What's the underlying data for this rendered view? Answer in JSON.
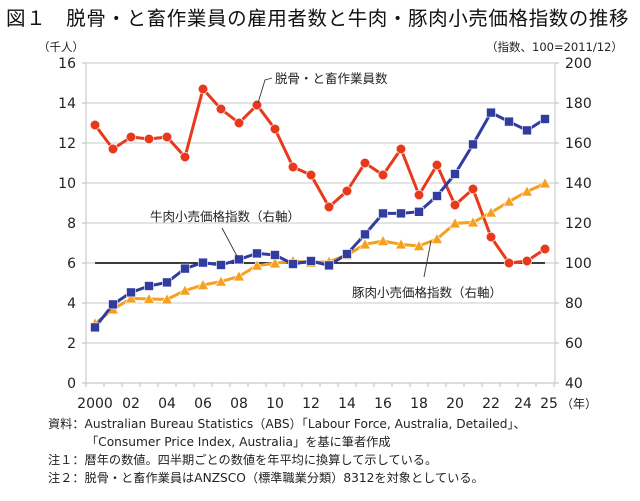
{
  "title": "図１　脱骨・と畜作業員の雇用者数と牛肉・豚肉小売価格指数の推移",
  "left_unit": "（千人）",
  "right_unit": "（指数、100=2011/12）",
  "notes": [
    "資料：Australian Bureau Statistics（ABS）「Labour Force, Australia, Detailed」、",
    "「Consumer Price Index, Australia」を基に筆者作成",
    "注１：暦年の数値。四半期ごとの数値を年平均に換算して示している。",
    "注２：脱骨・と畜作業員はANZSCO（標準職業分類）8312を対象としている。"
  ],
  "colors": {
    "workers": "#E8391C",
    "beef": "#323C9E",
    "pork": "#F5A01E",
    "grid": "#d4d4d4",
    "reference": "#000000"
  },
  "chart_data": {
    "type": "line",
    "title": "脱骨・と畜作業員の雇用者数と牛肉・豚肉小売価格指数の推移",
    "x": [
      2000,
      2001,
      2002,
      2003,
      2004,
      2005,
      2006,
      2007,
      2008,
      2009,
      2010,
      2011,
      2012,
      2013,
      2014,
      2015,
      2016,
      2017,
      2018,
      2019,
      2020,
      2021,
      2022,
      2023,
      2024,
      2025
    ],
    "x_tick_labels": [
      "2000",
      "02",
      "04",
      "06",
      "08",
      "10",
      "12",
      "14",
      "16",
      "18",
      "20",
      "22",
      "24",
      "25"
    ],
    "x_tick_values": [
      2000,
      2002,
      2004,
      2006,
      2008,
      2010,
      2012,
      2014,
      2016,
      2018,
      2020,
      2022,
      2024,
      2025
    ],
    "xlabel": "（年）",
    "y_left": {
      "ylim": [
        0,
        16
      ],
      "ticks": [
        0,
        2,
        4,
        6,
        8,
        10,
        12,
        14,
        16
      ],
      "label": "（千人）"
    },
    "y_right": {
      "ylim": [
        40,
        200
      ],
      "ticks": [
        40,
        60,
        80,
        100,
        120,
        140,
        160,
        180,
        200
      ],
      "label": "（指数、100=2011/12）"
    },
    "reference_line": {
      "axis": "right",
      "value": 100
    },
    "grid": true,
    "series": [
      {
        "name": "脱骨・と畜作業員数",
        "axis": "left",
        "marker": "circle",
        "values": [
          12.9,
          11.7,
          12.3,
          12.2,
          12.3,
          11.3,
          14.7,
          13.7,
          13.0,
          13.9,
          12.7,
          10.8,
          10.4,
          8.8,
          9.6,
          11.0,
          10.4,
          11.7,
          9.4,
          10.9,
          8.9,
          9.7,
          7.3,
          6.0,
          6.1,
          6.7
        ]
      },
      {
        "name": "牛肉小売価格指数（右軸）",
        "axis": "right",
        "marker": "square",
        "values": [
          67.8,
          79.3,
          85.3,
          88.5,
          90.3,
          97.2,
          100.2,
          99.0,
          101.8,
          104.8,
          104.0,
          99.5,
          101.0,
          98.8,
          104.5,
          114.3,
          124.8,
          124.8,
          125.6,
          133.5,
          144.5,
          159.3,
          175.2,
          170.7,
          166.3,
          172.0
        ]
      },
      {
        "name": "豚肉小売価格指数（右軸）",
        "axis": "right",
        "marker": "triangle",
        "values": [
          69.8,
          76.8,
          82.3,
          82.0,
          81.8,
          86.2,
          89.0,
          90.7,
          93.3,
          98.7,
          99.8,
          101.0,
          100.2,
          100.7,
          104.0,
          109.3,
          111.0,
          109.3,
          108.5,
          112.0,
          119.8,
          120.3,
          125.2,
          130.7,
          135.7,
          139.8
        ]
      }
    ]
  }
}
